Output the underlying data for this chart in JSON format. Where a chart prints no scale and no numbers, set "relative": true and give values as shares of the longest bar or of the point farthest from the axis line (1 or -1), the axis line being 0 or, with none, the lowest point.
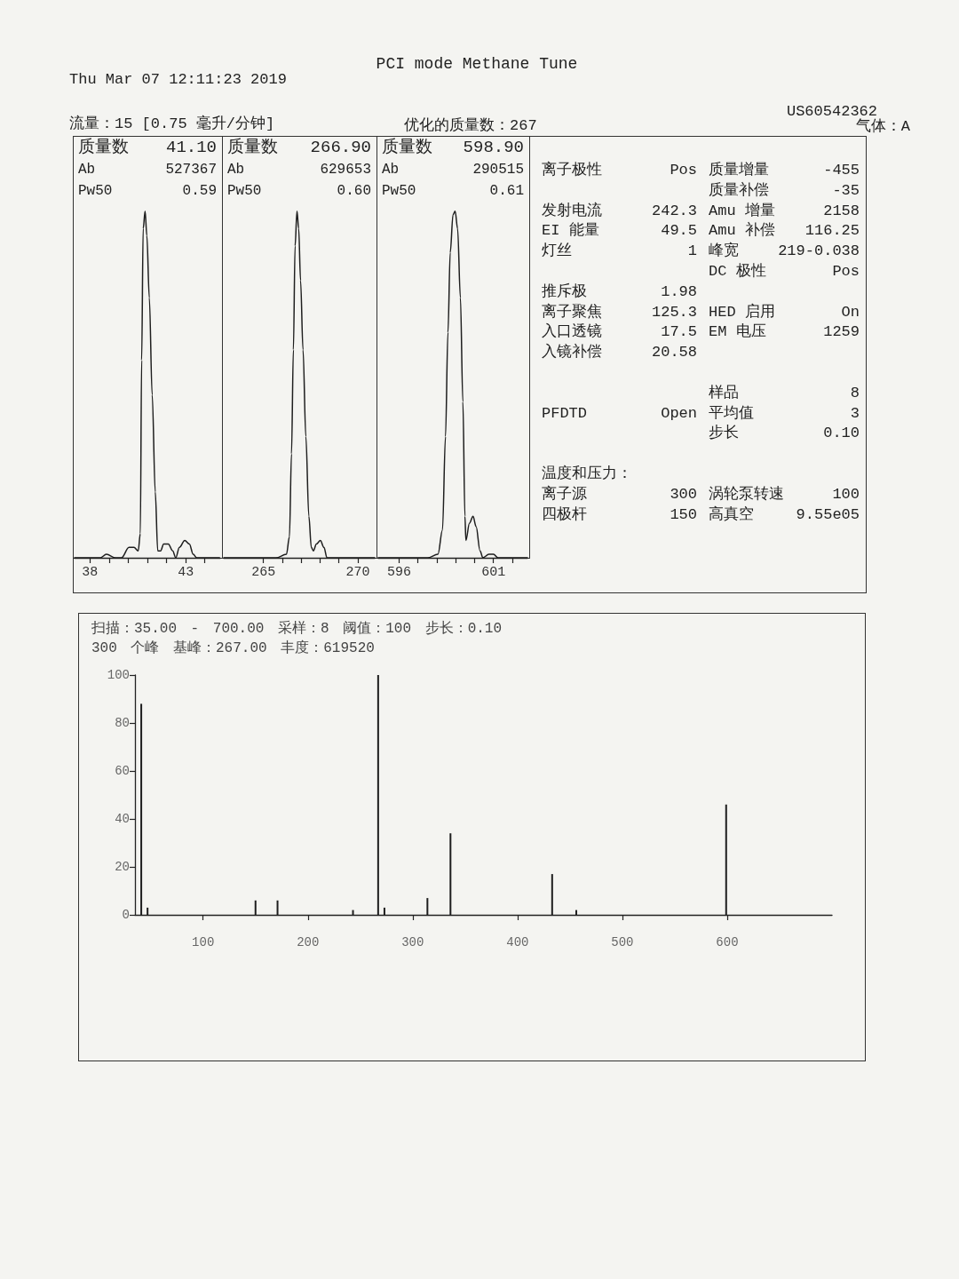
{
  "chart_data": [
    {
      "type": "other",
      "title": "PCI mode Methane Tune",
      "annotations": [
        "Thu Mar 07 12:11:23 2019",
        "流量：15 [0.75 毫升/分钟]",
        "优化的质量数：267",
        "US60542362",
        "气体：A"
      ]
    },
    {
      "type": "line",
      "title": "质量数 41.10",
      "annotations": [
        "Ab 527367",
        "Pw50 0.59"
      ],
      "relative": true,
      "color": "#1e1e1e",
      "xlim": [
        37.2,
        44.8
      ],
      "xticks": [
        38,
        {
          "value": 39,
          "label": null
        },
        {
          "value": 40,
          "label": null
        },
        {
          "value": 41,
          "label": null
        },
        {
          "value": 42,
          "label": null
        },
        43,
        {
          "value": 44,
          "label": null
        }
      ],
      "x": [
        37.2,
        38.55,
        38.86,
        39.34,
        39.65,
        40.04,
        40.3,
        40.52,
        40.63,
        40.7,
        40.78,
        40.88,
        40.97,
        41.1,
        41.25,
        41.41,
        41.54,
        41.69,
        41.85,
        42.09,
        42.32,
        42.48,
        42.67,
        42.95,
        43.19,
        43.39,
        43.58,
        44.05,
        44.76
      ],
      "values": [
        0,
        0,
        0.01,
        0,
        0,
        0.03,
        0.03,
        0.02,
        0.07,
        0.57,
        0.95,
        1,
        0.93,
        0.75,
        0.47,
        0.19,
        0.02,
        0.02,
        0.04,
        0.04,
        0.02,
        0,
        0.03,
        0.05,
        0.04,
        0.01,
        0,
        0,
        0
      ]
    },
    {
      "type": "line",
      "title": "质量数 266.90",
      "annotations": [
        "Ab 629653",
        "Pw50 0.60"
      ],
      "relative": true,
      "color": "#1e1e1e",
      "xlim": [
        262.9,
        270.9
      ],
      "xticks": [
        265,
        {
          "value": 266,
          "label": null
        },
        {
          "value": 267,
          "label": null
        },
        {
          "value": 268,
          "label": null
        },
        {
          "value": 269,
          "label": null
        },
        270
      ],
      "x": [
        262.9,
        264.08,
        264.87,
        265.67,
        266.22,
        266.38,
        266.49,
        266.59,
        266.68,
        266.78,
        266.87,
        266.97,
        267.1,
        267.25,
        267.41,
        267.54,
        267.65,
        267.81,
        268.02,
        268.21,
        268.37,
        268.84,
        269.4,
        270.9
      ],
      "values": [
        0,
        0,
        0,
        0,
        0.01,
        0.06,
        0.3,
        0.6,
        0.9,
        1,
        0.95,
        0.8,
        0.6,
        0.35,
        0.12,
        0.03,
        0.02,
        0.04,
        0.05,
        0.03,
        0,
        0,
        0,
        0
      ]
    },
    {
      "type": "line",
      "title": "质量数 598.90",
      "annotations": [
        "Ab 290515",
        "Pw50 0.61"
      ],
      "relative": true,
      "color": "#1e1e1e",
      "xlim": [
        594.9,
        602.8
      ],
      "xticks": [
        596,
        {
          "value": 597,
          "label": null
        },
        {
          "value": 598,
          "label": null
        },
        {
          "value": 599,
          "label": null
        },
        {
          "value": 600,
          "label": null
        },
        601,
        {
          "value": 602,
          "label": null
        }
      ],
      "x": [
        594.9,
        597.51,
        598.06,
        598.3,
        598.46,
        598.59,
        598.71,
        598.86,
        598.97,
        599.1,
        599.25,
        599.38,
        599.49,
        599.54,
        599.73,
        599.92,
        600.08,
        600.29,
        600.44,
        600.76,
        601,
        601.24,
        602.8
      ],
      "values": [
        0,
        0,
        0.01,
        0.08,
        0.35,
        0.65,
        0.88,
        0.99,
        1,
        0.95,
        0.75,
        0.45,
        0.12,
        0.05,
        0.1,
        0.12,
        0.09,
        0.02,
        0,
        0.01,
        0.01,
        0,
        0
      ]
    },
    {
      "type": "other",
      "annotations": [
        "离子极性 Pos",
        "质量增量 -455",
        "质量补偿 -35",
        "发射电流 242.3",
        "Amu 增量 2158",
        "EI 能量 49.5",
        "Amu 补偿 116.25",
        "灯丝 1",
        "峰宽 219-0.038",
        "DC 极性 Pos",
        "推斥极 1.98",
        "离子聚焦 125.3",
        "HED 启用 On",
        "入口透镜 17.5",
        "EM 电压 1259",
        "入镜补偿 20.58",
        "样品 8",
        "PFDTD Open",
        "平均值 3",
        "步长 0.10",
        "温度和压力：",
        "离子源 300",
        "涡轮泵转速 100",
        "四极杆 150",
        "高真空 9.55e05"
      ]
    },
    {
      "type": "bar",
      "annotations": [
        "扫描：35.00 - 700.00 采样：8 阈值：100 步长：0.10",
        "300 个峰 基峰：267.00 丰度：619520"
      ],
      "color": "#1e1e1e",
      "xlim": [
        35,
        700
      ],
      "xticks": [
        100,
        200,
        300,
        400,
        500,
        600
      ],
      "ylim": [
        0,
        100
      ],
      "yticks": [
        0,
        20,
        40,
        60,
        80,
        100
      ],
      "x": [
        41,
        47,
        150,
        171,
        243,
        267,
        273,
        314,
        336,
        433,
        456,
        599
      ],
      "values": [
        88,
        3,
        6,
        6,
        2,
        100,
        3,
        7,
        34,
        17,
        2,
        46
      ]
    }
  ]
}
